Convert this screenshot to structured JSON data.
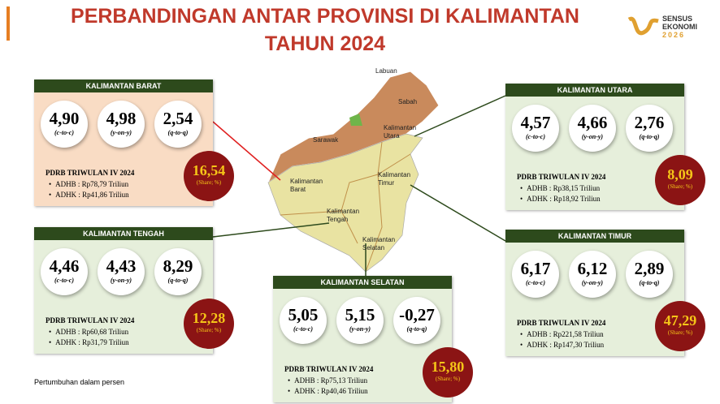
{
  "header": {
    "title_line1": "PERBANDINGAN ANTAR PROVINSI DI KALIMANTAN",
    "title_line2": "TAHUN 2024"
  },
  "logo": {
    "line1": "SENSUS",
    "line2": "EKONOMI",
    "line3": "2026"
  },
  "panels": [
    {
      "title": "KALIMANTAN BARAT",
      "indicators": [
        {
          "value": "4,90",
          "label": "(c-to-c)"
        },
        {
          "value": "4,98",
          "label": "(y-on-y)"
        },
        {
          "value": "2,54",
          "label": "(q-to-q)"
        }
      ],
      "pdrb_title": "PDRB TRIWULAN IV 2024",
      "adhb": "ADHB : Rp78,79 Triliun",
      "adhk": "ADHK : Rp41,86 Triliun",
      "share": "16,54",
      "share_label": "(Share; %)"
    },
    {
      "title": "KALIMANTAN UTARA",
      "indicators": [
        {
          "value": "4,57",
          "label": "(c-to-c)"
        },
        {
          "value": "4,66",
          "label": "(y-on-y)"
        },
        {
          "value": "2,76",
          "label": "(q-to-q)"
        }
      ],
      "pdrb_title": "PDRB TRIWULAN IV 2024",
      "adhb": "ADHB : Rp38,15 Triliun",
      "adhk": "ADHK : Rp18,92 Triliun",
      "share": "8,09",
      "share_label": "(Share; %)"
    },
    {
      "title": "KALIMANTAN TENGAH",
      "indicators": [
        {
          "value": "4,46",
          "label": "(c-to-c)"
        },
        {
          "value": "4,43",
          "label": "(y-on-y)"
        },
        {
          "value": "8,29",
          "label": "(q-to-q)"
        }
      ],
      "pdrb_title": "PDRB TRIWULAN IV 2024",
      "adhb": "ADHB : Rp60,68 Triliun",
      "adhk": "ADHK : Rp31,79 Triliun",
      "share": "12,28",
      "share_label": "(Share; %)"
    },
    {
      "title": "KALIMANTAN SELATAN",
      "indicators": [
        {
          "value": "5,05",
          "label": "(c-to-c)"
        },
        {
          "value": "5,15",
          "label": "(y-on-y)"
        },
        {
          "value": "-0,27",
          "label": "(q-to-q)"
        }
      ],
      "pdrb_title": "PDRB TRIWULAN IV 2024",
      "adhb": "ADHB : Rp75,13 Triliun",
      "adhk": "ADHK : Rp40,46 Triliun",
      "share": "15,80",
      "share_label": "(Share; %)"
    },
    {
      "title": "KALIMANTAN TIMUR",
      "indicators": [
        {
          "value": "6,17",
          "label": "(c-to-c)"
        },
        {
          "value": "6,12",
          "label": "(y-on-y)"
        },
        {
          "value": "2,89",
          "label": "(q-to-q)"
        }
      ],
      "pdrb_title": "PDRB TRIWULAN IV 2024",
      "adhb": "ADHB : Rp221,58 Triliun",
      "adhk": "ADHK : Rp147,30 Triliun",
      "share": "47,29",
      "share_label": "(Share; %)"
    }
  ],
  "map_labels": [
    {
      "lines": [
        "Labuan"
      ]
    },
    {
      "lines": [
        "Sabah"
      ]
    },
    {
      "lines": [
        "Sarawak"
      ]
    },
    {
      "lines": [
        "Kalimantan",
        "Utara"
      ]
    },
    {
      "lines": [
        "Kalimantan",
        "Timur"
      ]
    },
    {
      "lines": [
        "Kalimantan",
        "Barat"
      ]
    },
    {
      "lines": [
        "Kalimantan",
        "Tengah"
      ]
    },
    {
      "lines": [
        "Kalimantan",
        "Selatan"
      ]
    }
  ],
  "footnote": "Pertumbuhan dalam persen"
}
